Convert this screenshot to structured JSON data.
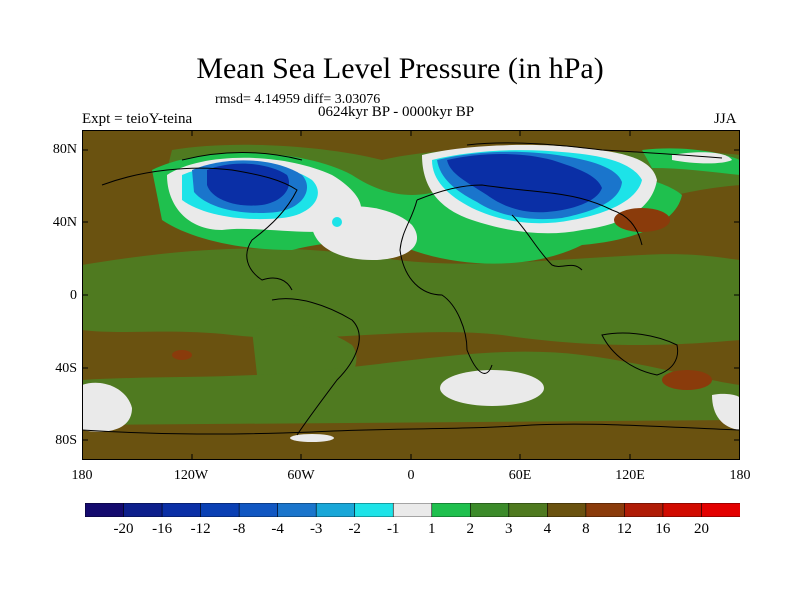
{
  "title": "Mean Sea Level Pressure (in hPa)",
  "stats": "rmsd= 4.14959 diff= 3.03076",
  "experiment": "Expt = teioY-teina",
  "period": "0624kyr BP - 0000kyr BP",
  "season": "JJA",
  "lat_labels": [
    "80N",
    "40N",
    "0",
    "40S",
    "80S"
  ],
  "lon_labels": [
    "180",
    "120W",
    "60W",
    "0",
    "60E",
    "120E",
    "180"
  ],
  "colorbar": {
    "labels": [
      "-20",
      "-16",
      "-12",
      "-8",
      "-4",
      "-3",
      "-2",
      "-1",
      "1",
      "2",
      "3",
      "4",
      "8",
      "12",
      "16",
      "20"
    ],
    "colors": [
      "#140a6e",
      "#0d1f8c",
      "#0a2fa6",
      "#0a40b4",
      "#1157c2",
      "#1a75cc",
      "#19a7d8",
      "#1de3e8",
      "#eaeaea",
      "#1fc04e",
      "#3c8b2a",
      "#4f7a20",
      "#6a5210",
      "#8a3b0b",
      "#b01c06",
      "#d10a00",
      "#e30000"
    ]
  },
  "colors": {
    "background_field": "#6a5210",
    "positive_small": "#4f7a20",
    "neutral": "#eaeaea",
    "negative_strong": "#0a2fa6"
  }
}
